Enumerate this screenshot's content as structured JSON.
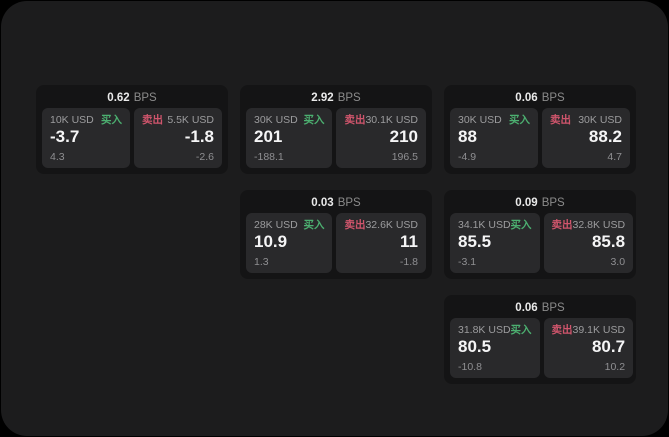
{
  "colors": {
    "background": "#000000",
    "panel": "#1C1C1D",
    "card": "#141415",
    "tile": "#29292B",
    "buy_green": "#4CAF70",
    "sell_red": "#D0556C"
  },
  "unit_label": "BPS",
  "cards": [
    {
      "spread": "0.62",
      "unit": "BPS",
      "buy": {
        "amount": "10K USD",
        "side_label": "买入",
        "price": "-3.7",
        "delta": "4.3"
      },
      "sell": {
        "amount": "5.5K USD",
        "side_label": "卖出",
        "price": "-1.8",
        "delta": "-2.6"
      }
    },
    {
      "spread": "2.92",
      "unit": "BPS",
      "buy": {
        "amount": "30K USD",
        "side_label": "买入",
        "price": "201",
        "delta": "-188.1"
      },
      "sell": {
        "amount": "30.1K USD",
        "side_label": "卖出",
        "price": "210",
        "delta": "196.5"
      }
    },
    {
      "spread": "0.06",
      "unit": "BPS",
      "buy": {
        "amount": "30K USD",
        "side_label": "买入",
        "price": "88",
        "delta": "-4.9"
      },
      "sell": {
        "amount": "30K USD",
        "side_label": "卖出",
        "price": "88.2",
        "delta": "4.7"
      }
    },
    {
      "spread": "0.03",
      "unit": "BPS",
      "buy": {
        "amount": "28K USD",
        "side_label": "买入",
        "price": "10.9",
        "delta": "1.3"
      },
      "sell": {
        "amount": "32.6K USD",
        "side_label": "卖出",
        "price": "11",
        "delta": "-1.8"
      }
    },
    {
      "spread": "0.09",
      "unit": "BPS",
      "buy": {
        "amount": "34.1K USD",
        "side_label": "买入",
        "price": "85.5",
        "delta": "-3.1"
      },
      "sell": {
        "amount": "32.8K USD",
        "side_label": "卖出",
        "price": "85.8",
        "delta": "3.0"
      }
    },
    {
      "spread": "0.06",
      "unit": "BPS",
      "buy": {
        "amount": "31.8K USD",
        "side_label": "买入",
        "price": "80.5",
        "delta": "-10.8"
      },
      "sell": {
        "amount": "39.1K USD",
        "side_label": "卖出",
        "price": "80.7",
        "delta": "10.2"
      }
    }
  ]
}
